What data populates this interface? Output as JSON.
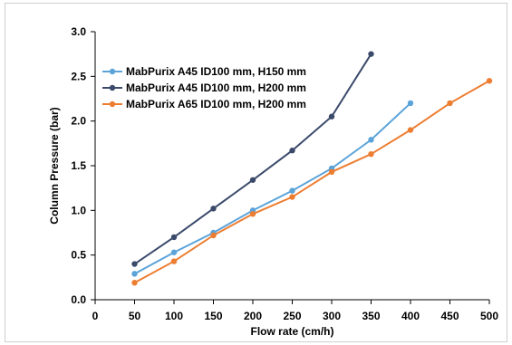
{
  "chart_data": {
    "type": "line",
    "xlabel": "Flow rate (cm/h)",
    "ylabel": "Column Pressure (bar)",
    "xlim": [
      0,
      500
    ],
    "ylim": [
      0,
      3.0
    ],
    "x_ticks": [
      "0",
      "50",
      "100",
      "150",
      "200",
      "250",
      "300",
      "350",
      "400",
      "450",
      "500"
    ],
    "y_ticks": [
      "0.0",
      "0.5",
      "1.0",
      "1.5",
      "2.0",
      "2.5",
      "3.0"
    ],
    "grid": false,
    "legend_position": "top-left",
    "series": [
      {
        "name": "MabPurix A45 ID100 mm, H150 mm",
        "color": "#5ba3d9",
        "x": [
          50,
          100,
          150,
          200,
          250,
          300,
          350,
          400
        ],
        "y": [
          0.29,
          0.53,
          0.75,
          1.0,
          1.22,
          1.47,
          1.79,
          2.2
        ]
      },
      {
        "name": "MabPurix A45 ID100 mm, H200 mm",
        "color": "#3b4a6b",
        "x": [
          50,
          100,
          150,
          200,
          250,
          300,
          350
        ],
        "y": [
          0.4,
          0.7,
          1.02,
          1.34,
          1.67,
          2.05,
          2.75
        ]
      },
      {
        "name": "MabPurix A65 ID100 mm, H200 mm",
        "color": "#ed7d31",
        "x": [
          50,
          100,
          150,
          200,
          250,
          300,
          350,
          400,
          450,
          500
        ],
        "y": [
          0.19,
          0.43,
          0.72,
          0.96,
          1.15,
          1.43,
          1.63,
          1.9,
          2.2,
          2.45
        ]
      }
    ]
  }
}
